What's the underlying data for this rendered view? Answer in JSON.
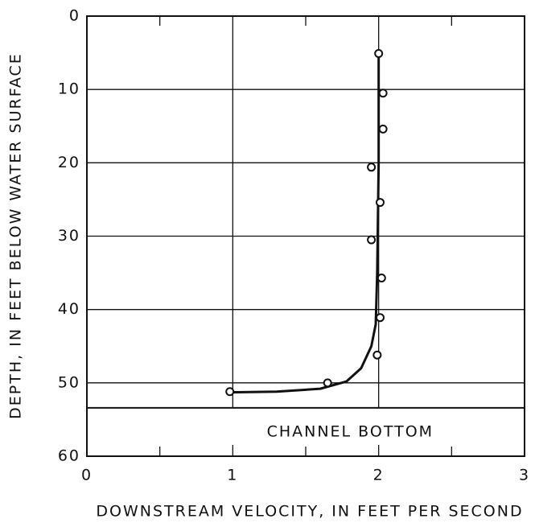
{
  "chart_data": {
    "type": "scatter",
    "x_label": "DOWNSTREAM VELOCITY, IN FEET PER SECOND",
    "y_label": "DEPTH, IN FEET BELOW WATER SURFACE",
    "annotation": "CHANNEL BOTTOM",
    "bottom_depth": 53.4,
    "xlim": [
      0,
      3
    ],
    "xticks": [
      0,
      1,
      2,
      3
    ],
    "xminor": [
      0.5,
      1.5,
      2.5
    ],
    "ylim": [
      0,
      60
    ],
    "yticks": [
      0,
      10,
      20,
      30,
      40,
      50,
      60
    ],
    "y_inverted": true,
    "grid": true,
    "color": "#111111",
    "x": [
      2.0,
      2.03,
      2.03,
      1.95,
      2.01,
      1.95,
      2.02,
      2.01,
      1.99,
      1.65,
      0.98
    ],
    "y": [
      5.1,
      10.5,
      15.4,
      20.6,
      25.4,
      30.5,
      35.7,
      41.1,
      46.2,
      50.0,
      51.2
    ],
    "curve": {
      "x": [
        2.0,
        2.0,
        1.99,
        1.98,
        1.95,
        1.88,
        1.78,
        1.6,
        1.3,
        0.98
      ],
      "y": [
        5,
        20,
        35,
        42,
        45,
        48,
        49.8,
        50.8,
        51.2,
        51.3
      ]
    }
  }
}
